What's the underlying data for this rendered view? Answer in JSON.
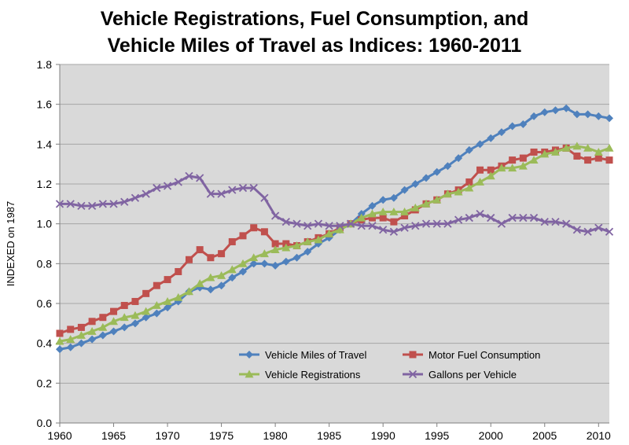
{
  "chart_data": {
    "type": "line",
    "title": [
      "Vehicle Registrations, Fuel Consumption, and",
      "Vehicle Miles of Travel as Indices: 1960-2011"
    ],
    "xlabel": "",
    "ylabel": "INDEXED on 1987",
    "xlim": [
      1960,
      2011
    ],
    "ylim": [
      0,
      1.8
    ],
    "yticks": [
      "0.0",
      "0.2",
      "0.4",
      "0.6",
      "0.8",
      "1.0",
      "1.2",
      "1.4",
      "1.6",
      "1.8"
    ],
    "xticks": [
      "1960",
      "1965",
      "1970",
      "1975",
      "1980",
      "1985",
      "1990",
      "1995",
      "2000",
      "2005",
      "2010"
    ],
    "grid": "horizontal",
    "plot_background": "#d9d9d9",
    "legend_position": "lower-right inside plot",
    "x": [
      1960,
      1961,
      1962,
      1963,
      1964,
      1965,
      1966,
      1967,
      1968,
      1969,
      1970,
      1971,
      1972,
      1973,
      1974,
      1975,
      1976,
      1977,
      1978,
      1979,
      1980,
      1981,
      1982,
      1983,
      1984,
      1985,
      1986,
      1987,
      1988,
      1989,
      1990,
      1991,
      1992,
      1993,
      1994,
      1995,
      1996,
      1997,
      1998,
      1999,
      2000,
      2001,
      2002,
      2003,
      2004,
      2005,
      2006,
      2007,
      2008,
      2009,
      2010,
      2011
    ],
    "series": [
      {
        "name": "Vehicle Miles of Travel",
        "color": "#4f81bd",
        "marker": "diamond",
        "values": [
          0.37,
          0.38,
          0.4,
          0.42,
          0.44,
          0.46,
          0.48,
          0.5,
          0.53,
          0.55,
          0.58,
          0.61,
          0.66,
          0.68,
          0.67,
          0.69,
          0.73,
          0.76,
          0.8,
          0.8,
          0.79,
          0.81,
          0.83,
          0.86,
          0.9,
          0.93,
          0.97,
          1.0,
          1.05,
          1.09,
          1.12,
          1.13,
          1.17,
          1.2,
          1.23,
          1.26,
          1.29,
          1.33,
          1.37,
          1.4,
          1.43,
          1.46,
          1.49,
          1.5,
          1.54,
          1.56,
          1.57,
          1.58,
          1.55,
          1.55,
          1.54,
          1.53
        ]
      },
      {
        "name": "Motor Fuel Consumption",
        "color": "#c0504d",
        "marker": "square",
        "values": [
          0.45,
          0.47,
          0.48,
          0.51,
          0.53,
          0.56,
          0.59,
          0.61,
          0.65,
          0.69,
          0.72,
          0.76,
          0.82,
          0.87,
          0.83,
          0.85,
          0.91,
          0.94,
          0.98,
          0.96,
          0.9,
          0.9,
          0.89,
          0.91,
          0.93,
          0.95,
          0.98,
          1.0,
          1.02,
          1.03,
          1.03,
          1.01,
          1.04,
          1.07,
          1.1,
          1.12,
          1.15,
          1.17,
          1.21,
          1.27,
          1.27,
          1.29,
          1.32,
          1.33,
          1.36,
          1.36,
          1.37,
          1.38,
          1.34,
          1.32,
          1.33,
          1.32
        ]
      },
      {
        "name": "Vehicle Registrations",
        "color": "#9bbb59",
        "marker": "triangle",
        "values": [
          0.41,
          0.42,
          0.44,
          0.46,
          0.48,
          0.51,
          0.53,
          0.54,
          0.56,
          0.59,
          0.61,
          0.63,
          0.66,
          0.7,
          0.73,
          0.74,
          0.77,
          0.8,
          0.83,
          0.85,
          0.87,
          0.88,
          0.89,
          0.91,
          0.92,
          0.95,
          0.97,
          1.0,
          1.03,
          1.05,
          1.06,
          1.06,
          1.06,
          1.08,
          1.1,
          1.12,
          1.15,
          1.16,
          1.18,
          1.21,
          1.24,
          1.28,
          1.28,
          1.29,
          1.32,
          1.35,
          1.36,
          1.38,
          1.39,
          1.38,
          1.36,
          1.38
        ]
      },
      {
        "name": "Gallons per Vehicle",
        "color": "#8064a2",
        "marker": "x",
        "values": [
          1.1,
          1.1,
          1.09,
          1.09,
          1.1,
          1.1,
          1.11,
          1.13,
          1.15,
          1.18,
          1.19,
          1.21,
          1.24,
          1.23,
          1.15,
          1.15,
          1.17,
          1.18,
          1.18,
          1.13,
          1.04,
          1.01,
          1.0,
          0.99,
          1.0,
          0.99,
          0.99,
          1.0,
          0.99,
          0.99,
          0.97,
          0.96,
          0.98,
          0.99,
          1.0,
          1.0,
          1.0,
          1.02,
          1.03,
          1.05,
          1.03,
          1.0,
          1.03,
          1.03,
          1.03,
          1.01,
          1.01,
          1.0,
          0.97,
          0.96,
          0.98,
          0.96
        ]
      }
    ]
  }
}
